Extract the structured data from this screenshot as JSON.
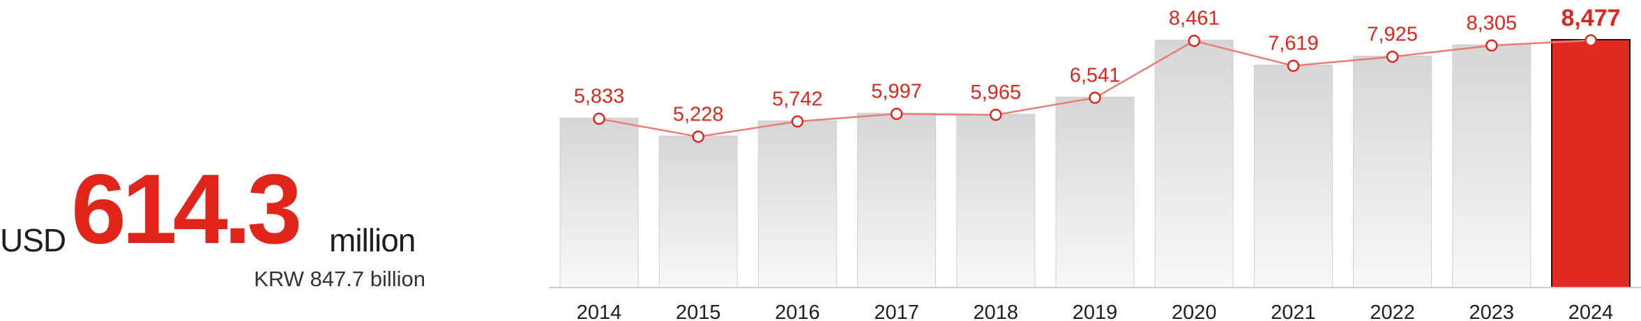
{
  "kpi": {
    "currency": "USD",
    "amount": "614.3",
    "unit": "million",
    "subtext": "KRW 847.7 billion"
  },
  "colors": {
    "accent": "#e1251b",
    "bar": "#dcdcdc",
    "highlight_bar": "#e22b20",
    "axis": "#cccccc"
  },
  "chart_data": {
    "type": "bar",
    "categories": [
      "2014",
      "2015",
      "2016",
      "2017",
      "2018",
      "2019",
      "2020",
      "2021",
      "2022",
      "2023",
      "2024"
    ],
    "values": [
      5833,
      5228,
      5742,
      5997,
      5965,
      6541,
      8461,
      7619,
      7925,
      8305,
      8477
    ],
    "value_labels": [
      "5,833",
      "5,228",
      "5,742",
      "5,997",
      "5,965",
      "6,541",
      "8,461",
      "7,619",
      "7,925",
      "8,305",
      "8,477"
    ],
    "highlight_index": 10,
    "overlay_line": true,
    "grid": false,
    "legend": "none"
  }
}
